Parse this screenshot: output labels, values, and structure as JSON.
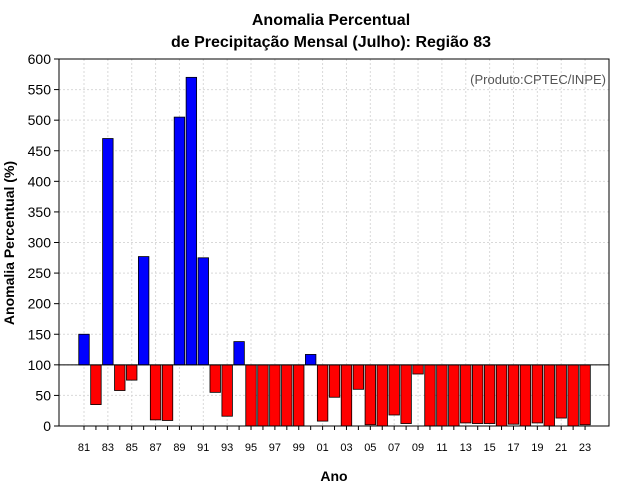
{
  "chart_data": {
    "type": "bar",
    "title_line1": "Anomalia Percentual",
    "title_line2": "de Precipitação Mensal (Julho): Região 83",
    "xlabel": "Ano",
    "ylabel": "Anomalia Percentual (%)",
    "credit": "(Produto:CPTEC/INPE)",
    "baseline": 100,
    "ylim": [
      0,
      600
    ],
    "yticks": [
      0,
      50,
      100,
      150,
      200,
      250,
      300,
      350,
      400,
      450,
      500,
      550,
      600
    ],
    "grid": true,
    "colors": {
      "above": "#0000ff",
      "below": "#ff0000",
      "grid": "#d9d9d9",
      "axis": "#000000"
    },
    "categories": [
      "81",
      "82",
      "83",
      "84",
      "85",
      "86",
      "87",
      "88",
      "89",
      "90",
      "91",
      "92",
      "93",
      "94",
      "95",
      "96",
      "97",
      "98",
      "99",
      "00",
      "01",
      "02",
      "03",
      "04",
      "05",
      "06",
      "07",
      "08",
      "09",
      "10",
      "11",
      "12",
      "13",
      "14",
      "15",
      "16",
      "17",
      "18",
      "19",
      "20",
      "21",
      "22",
      "23"
    ],
    "xtick_labels": [
      "81",
      "83",
      "85",
      "87",
      "89",
      "91",
      "93",
      "95",
      "97",
      "99",
      "01",
      "03",
      "05",
      "07",
      "09",
      "11",
      "13",
      "15",
      "17",
      "19",
      "21",
      "23"
    ],
    "values": [
      150,
      35,
      470,
      58,
      75,
      277,
      10,
      9,
      505,
      570,
      275,
      55,
      16,
      138,
      0,
      0,
      0,
      0,
      0,
      117,
      8,
      47,
      0,
      60,
      2,
      0,
      18,
      4,
      85,
      0,
      0,
      0,
      5,
      4,
      4,
      0,
      3,
      0,
      5,
      0,
      13,
      0,
      2
    ]
  }
}
